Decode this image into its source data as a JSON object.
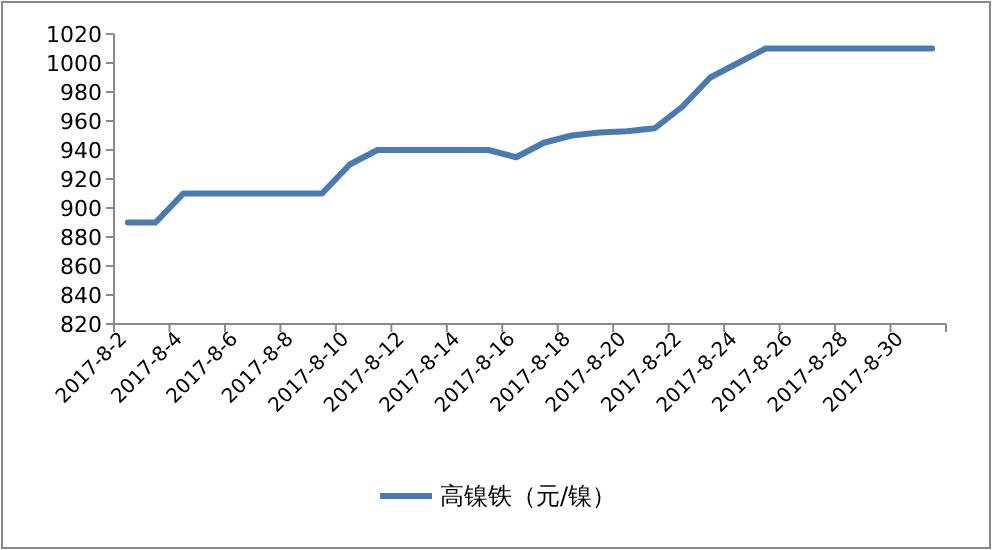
{
  "chart_data": {
    "type": "line",
    "categories": [
      "2017-8-2",
      null,
      "2017-8-4",
      null,
      "2017-8-6",
      null,
      "2017-8-8",
      null,
      "2017-8-10",
      null,
      "2017-8-12",
      null,
      "2017-8-14",
      null,
      "2017-8-16",
      null,
      "2017-8-18",
      null,
      "2017-8-20",
      null,
      "2017-8-22",
      null,
      "2017-8-24",
      null,
      "2017-8-26",
      null,
      "2017-8-28",
      null,
      "2017-8-30",
      null
    ],
    "series": [
      {
        "name": "高镍铁（元/镍）",
        "color": "#4a7ab0",
        "values": [
          890,
          890,
          910,
          910,
          910,
          910,
          910,
          910,
          930,
          940,
          940,
          940,
          940,
          940,
          935,
          945,
          950,
          952,
          953,
          955,
          970,
          990,
          1000,
          1010,
          1010,
          1010,
          1010,
          1010,
          1010,
          1010
        ]
      }
    ],
    "ylim": [
      820,
      1020
    ],
    "yticks": [
      820,
      840,
      860,
      880,
      900,
      920,
      940,
      960,
      980,
      1000,
      1020
    ],
    "legend": "bottom"
  }
}
